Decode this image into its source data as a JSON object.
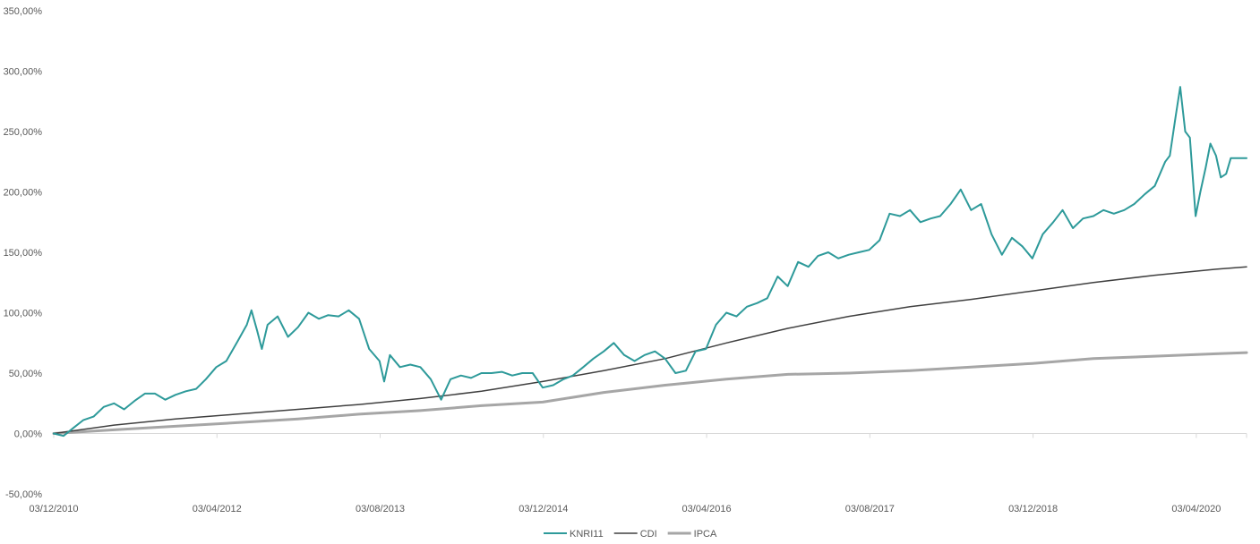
{
  "chart_data": {
    "type": "line",
    "title": "",
    "xlabel": "",
    "ylabel": "",
    "ylim": [
      -50,
      350
    ],
    "y_ticks": [
      -50,
      0,
      50,
      100,
      150,
      200,
      250,
      300,
      350
    ],
    "y_tick_labels": [
      "-50,00%",
      "0,00%",
      "50,00%",
      "100,00%",
      "150,00%",
      "200,00%",
      "250,00%",
      "300,00%",
      "350,00%"
    ],
    "x_range": [
      "03/12/2010",
      "31/08/2020"
    ],
    "x_tick_labels": [
      "03/12/2010",
      "03/04/2012",
      "03/08/2013",
      "03/12/2014",
      "03/04/2016",
      "03/08/2017",
      "03/12/2018",
      "03/04/2020"
    ],
    "grid": false,
    "legend_position": "bottom",
    "series": [
      {
        "name": "KNRI11",
        "color": "#2e9a9a",
        "points": [
          [
            "03/12/2010",
            0
          ],
          [
            "01/01/2011",
            -2
          ],
          [
            "01/02/2011",
            5
          ],
          [
            "01/03/2011",
            11
          ],
          [
            "01/04/2011",
            14
          ],
          [
            "01/05/2011",
            22
          ],
          [
            "01/06/2011",
            25
          ],
          [
            "01/07/2011",
            20
          ],
          [
            "01/08/2011",
            27
          ],
          [
            "01/09/2011",
            33
          ],
          [
            "01/10/2011",
            33
          ],
          [
            "01/11/2011",
            28
          ],
          [
            "01/12/2011",
            32
          ],
          [
            "01/01/2012",
            35
          ],
          [
            "01/02/2012",
            37
          ],
          [
            "01/03/2012",
            45
          ],
          [
            "01/04/2012",
            55
          ],
          [
            "01/05/2012",
            60
          ],
          [
            "01/06/2012",
            75
          ],
          [
            "01/07/2012",
            90
          ],
          [
            "15/07/2012",
            102
          ],
          [
            "01/08/2012",
            85
          ],
          [
            "15/08/2012",
            70
          ],
          [
            "01/09/2012",
            90
          ],
          [
            "01/10/2012",
            97
          ],
          [
            "01/11/2012",
            80
          ],
          [
            "01/12/2012",
            88
          ],
          [
            "01/01/2013",
            100
          ],
          [
            "01/02/2013",
            95
          ],
          [
            "01/03/2013",
            98
          ],
          [
            "01/04/2013",
            97
          ],
          [
            "01/05/2013",
            102
          ],
          [
            "01/06/2013",
            95
          ],
          [
            "01/07/2013",
            70
          ],
          [
            "01/08/2013",
            60
          ],
          [
            "15/08/2013",
            43
          ],
          [
            "01/09/2013",
            65
          ],
          [
            "01/10/2013",
            55
          ],
          [
            "01/11/2013",
            57
          ],
          [
            "01/12/2013",
            55
          ],
          [
            "01/01/2014",
            45
          ],
          [
            "01/02/2014",
            28
          ],
          [
            "01/03/2014",
            45
          ],
          [
            "01/04/2014",
            48
          ],
          [
            "01/05/2014",
            46
          ],
          [
            "01/06/2014",
            50
          ],
          [
            "01/07/2014",
            50
          ],
          [
            "01/08/2014",
            51
          ],
          [
            "01/09/2014",
            48
          ],
          [
            "01/10/2014",
            50
          ],
          [
            "01/11/2014",
            50
          ],
          [
            "01/12/2014",
            38
          ],
          [
            "01/01/2015",
            40
          ],
          [
            "01/02/2015",
            45
          ],
          [
            "01/03/2015",
            48
          ],
          [
            "01/04/2015",
            55
          ],
          [
            "01/05/2015",
            62
          ],
          [
            "01/06/2015",
            68
          ],
          [
            "01/07/2015",
            75
          ],
          [
            "01/08/2015",
            65
          ],
          [
            "01/09/2015",
            60
          ],
          [
            "01/10/2015",
            65
          ],
          [
            "01/11/2015",
            68
          ],
          [
            "01/12/2015",
            62
          ],
          [
            "01/01/2016",
            50
          ],
          [
            "01/02/2016",
            52
          ],
          [
            "01/03/2016",
            68
          ],
          [
            "01/04/2016",
            70
          ],
          [
            "01/05/2016",
            90
          ],
          [
            "01/06/2016",
            100
          ],
          [
            "01/07/2016",
            97
          ],
          [
            "01/08/2016",
            105
          ],
          [
            "01/09/2016",
            108
          ],
          [
            "01/10/2016",
            112
          ],
          [
            "01/11/2016",
            130
          ],
          [
            "01/12/2016",
            122
          ],
          [
            "01/01/2017",
            142
          ],
          [
            "01/02/2017",
            138
          ],
          [
            "01/03/2017",
            147
          ],
          [
            "01/04/2017",
            150
          ],
          [
            "01/05/2017",
            145
          ],
          [
            "01/06/2017",
            148
          ],
          [
            "01/07/2017",
            150
          ],
          [
            "01/08/2017",
            152
          ],
          [
            "01/09/2017",
            160
          ],
          [
            "01/10/2017",
            182
          ],
          [
            "01/11/2017",
            180
          ],
          [
            "01/12/2017",
            185
          ],
          [
            "01/01/2018",
            175
          ],
          [
            "01/02/2018",
            178
          ],
          [
            "01/03/2018",
            180
          ],
          [
            "01/04/2018",
            190
          ],
          [
            "01/05/2018",
            202
          ],
          [
            "01/06/2018",
            185
          ],
          [
            "01/07/2018",
            190
          ],
          [
            "01/08/2018",
            165
          ],
          [
            "01/09/2018",
            148
          ],
          [
            "01/10/2018",
            162
          ],
          [
            "01/11/2018",
            155
          ],
          [
            "01/12/2018",
            145
          ],
          [
            "01/01/2019",
            165
          ],
          [
            "01/02/2019",
            175
          ],
          [
            "01/03/2019",
            185
          ],
          [
            "01/04/2019",
            170
          ],
          [
            "01/05/2019",
            178
          ],
          [
            "01/06/2019",
            180
          ],
          [
            "01/07/2019",
            185
          ],
          [
            "01/08/2019",
            182
          ],
          [
            "01/09/2019",
            185
          ],
          [
            "01/10/2019",
            190
          ],
          [
            "01/11/2019",
            198
          ],
          [
            "01/12/2019",
            205
          ],
          [
            "01/01/2020",
            225
          ],
          [
            "15/01/2020",
            230
          ],
          [
            "01/02/2020",
            262
          ],
          [
            "15/02/2020",
            287
          ],
          [
            "01/03/2020",
            250
          ],
          [
            "15/03/2020",
            245
          ],
          [
            "01/04/2020",
            180
          ],
          [
            "15/04/2020",
            200
          ],
          [
            "01/05/2020",
            220
          ],
          [
            "15/05/2020",
            240
          ],
          [
            "01/06/2020",
            230
          ],
          [
            "15/06/2020",
            212
          ],
          [
            "01/07/2020",
            215
          ],
          [
            "15/07/2020",
            228
          ],
          [
            "31/08/2020",
            228
          ]
        ]
      },
      {
        "name": "CDI",
        "color": "#404040",
        "points": [
          [
            "03/12/2010",
            0
          ],
          [
            "01/06/2011",
            7
          ],
          [
            "01/12/2011",
            12
          ],
          [
            "01/06/2012",
            16
          ],
          [
            "01/12/2012",
            20
          ],
          [
            "01/06/2013",
            24
          ],
          [
            "01/12/2013",
            29
          ],
          [
            "01/06/2014",
            35
          ],
          [
            "01/12/2014",
            43
          ],
          [
            "01/06/2015",
            52
          ],
          [
            "01/12/2015",
            62
          ],
          [
            "01/06/2016",
            75
          ],
          [
            "01/12/2016",
            87
          ],
          [
            "01/06/2017",
            97
          ],
          [
            "01/12/2017",
            105
          ],
          [
            "01/06/2018",
            111
          ],
          [
            "01/12/2018",
            118
          ],
          [
            "01/06/2019",
            125
          ],
          [
            "01/12/2019",
            131
          ],
          [
            "01/06/2020",
            136
          ],
          [
            "31/08/2020",
            138
          ]
        ]
      },
      {
        "name": "IPCA",
        "color": "#a6a6a6",
        "points": [
          [
            "03/12/2010",
            0
          ],
          [
            "01/06/2011",
            3
          ],
          [
            "01/12/2011",
            6
          ],
          [
            "01/06/2012",
            9
          ],
          [
            "01/12/2012",
            12
          ],
          [
            "01/06/2013",
            16
          ],
          [
            "01/12/2013",
            19
          ],
          [
            "01/06/2014",
            23
          ],
          [
            "01/12/2014",
            26
          ],
          [
            "01/06/2015",
            34
          ],
          [
            "01/12/2015",
            40
          ],
          [
            "01/06/2016",
            45
          ],
          [
            "01/12/2016",
            49
          ],
          [
            "01/06/2017",
            50
          ],
          [
            "01/12/2017",
            52
          ],
          [
            "01/06/2018",
            55
          ],
          [
            "01/12/2018",
            58
          ],
          [
            "01/06/2019",
            62
          ],
          [
            "01/12/2019",
            64
          ],
          [
            "01/06/2020",
            66
          ],
          [
            "31/08/2020",
            67
          ]
        ]
      }
    ]
  }
}
